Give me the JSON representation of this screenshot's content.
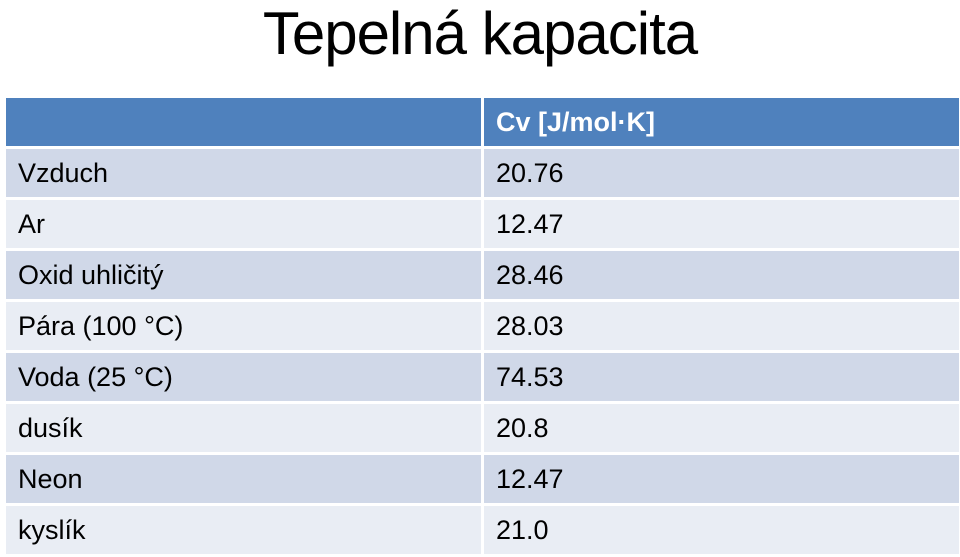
{
  "title": "Tepelná kapacita",
  "table": {
    "header": "Cv [J/mol·K]",
    "rows": [
      [
        "Vzduch",
        "20.76"
      ],
      [
        "Ar",
        "12.47"
      ],
      [
        "Oxid uhličitý",
        "28.46"
      ],
      [
        "Pára (100 °C)",
        "28.03"
      ],
      [
        "Voda (25 °C)",
        "74.53"
      ],
      [
        "dusík",
        "20.8"
      ],
      [
        "Neon",
        "12.47"
      ],
      [
        "kyslík",
        "21.0"
      ]
    ]
  }
}
